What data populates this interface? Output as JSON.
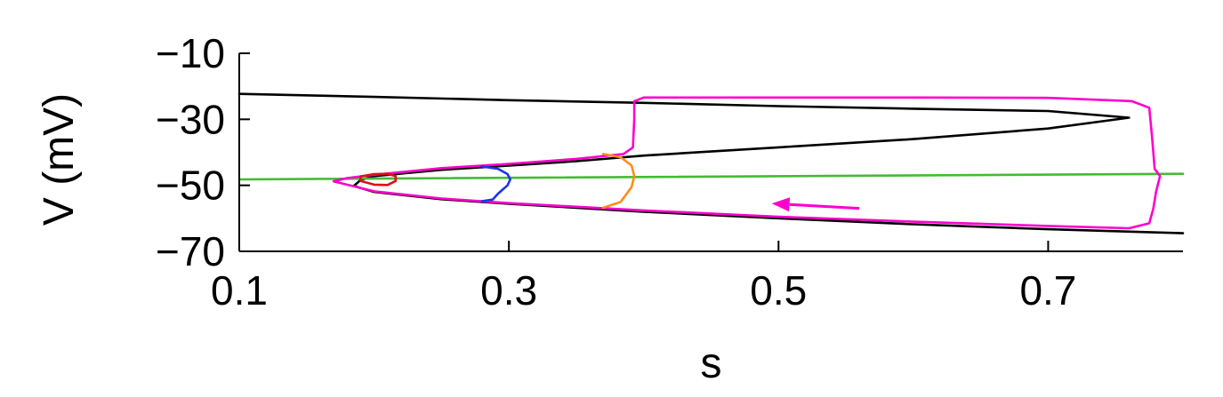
{
  "chart_data": {
    "type": "line",
    "title": "",
    "xlabel": "s",
    "ylabel": "V (mV)",
    "xlim": [
      0.1,
      0.8
    ],
    "ylim": [
      -70,
      -10
    ],
    "x_ticks": [
      0.1,
      0.3,
      0.5,
      0.7
    ],
    "x_tick_labels": [
      "0.1",
      "0.3",
      "0.5",
      "0.7"
    ],
    "y_ticks": [
      -10,
      -30,
      -50,
      -70
    ],
    "y_tick_labels": [
      "−10",
      "−30",
      "−50",
      "−70"
    ],
    "grid": false,
    "legend": "none",
    "series": [
      {
        "color": "#000000",
        "points": [
          [
            0.8,
            -64.5
          ],
          [
            0.7,
            -63.3
          ],
          [
            0.6,
            -61.8
          ],
          [
            0.5,
            -60.0
          ],
          [
            0.4,
            -58.0
          ],
          [
            0.3,
            -55.6
          ],
          [
            0.25,
            -54.2
          ],
          [
            0.2,
            -52.0
          ],
          [
            0.185,
            -50.2
          ],
          [
            0.19,
            -48.4
          ],
          [
            0.2,
            -47.2
          ],
          [
            0.25,
            -45.3
          ],
          [
            0.3,
            -44.0
          ],
          [
            0.35,
            -42.7
          ],
          [
            0.4,
            -41.0
          ],
          [
            0.5,
            -38.5
          ],
          [
            0.6,
            -36.0
          ],
          [
            0.7,
            -32.8
          ],
          [
            0.76,
            -29.5
          ],
          [
            0.7,
            -27.5
          ],
          [
            0.6,
            -26.8
          ],
          [
            0.5,
            -26.0
          ],
          [
            0.4,
            -25.0
          ],
          [
            0.3,
            -24.2
          ],
          [
            0.2,
            -23.2
          ],
          [
            0.1,
            -22.3
          ]
        ]
      },
      {
        "color": "#44bb33",
        "points": [
          [
            0.1,
            -48.2
          ],
          [
            0.8,
            -46.5
          ]
        ]
      },
      {
        "color": "#ff00cc",
        "points": [
          [
            0.393,
            -24.5
          ],
          [
            0.4,
            -23.4
          ],
          [
            0.5,
            -23.4
          ],
          [
            0.6,
            -23.4
          ],
          [
            0.7,
            -23.5
          ],
          [
            0.762,
            -24.5
          ],
          [
            0.775,
            -26.5
          ],
          [
            0.777,
            -35.0
          ],
          [
            0.779,
            -45.0
          ],
          [
            0.783,
            -47.2
          ],
          [
            0.78,
            -52.0
          ],
          [
            0.778,
            -57.0
          ],
          [
            0.775,
            -61.5
          ],
          [
            0.76,
            -63.0
          ],
          [
            0.7,
            -62.3
          ],
          [
            0.6,
            -61.0
          ],
          [
            0.5,
            -59.5
          ],
          [
            0.4,
            -57.6
          ],
          [
            0.3,
            -55.4
          ],
          [
            0.25,
            -54.0
          ],
          [
            0.2,
            -51.8
          ],
          [
            0.17,
            -48.8
          ],
          [
            0.18,
            -47.8
          ],
          [
            0.2,
            -46.8
          ],
          [
            0.25,
            -44.8
          ],
          [
            0.3,
            -43.5
          ],
          [
            0.35,
            -42.0
          ],
          [
            0.385,
            -40.5
          ],
          [
            0.392,
            -38.5
          ],
          [
            0.393,
            -30.0
          ],
          [
            0.393,
            -24.5
          ]
        ]
      },
      {
        "color": "#ff8c1a",
        "points": [
          [
            0.37,
            -40.5
          ],
          [
            0.383,
            -41.5
          ],
          [
            0.391,
            -44.0
          ],
          [
            0.393,
            -47.2
          ],
          [
            0.391,
            -50.5
          ],
          [
            0.383,
            -55.0
          ],
          [
            0.37,
            -56.8
          ]
        ]
      },
      {
        "color": "#1a33ee",
        "points": [
          [
            0.28,
            -44.3
          ],
          [
            0.292,
            -45.0
          ],
          [
            0.299,
            -46.6
          ],
          [
            0.301,
            -48.2
          ],
          [
            0.299,
            -50.0
          ],
          [
            0.292,
            -52.5
          ],
          [
            0.288,
            -54.3
          ],
          [
            0.28,
            -54.8
          ]
        ]
      },
      {
        "color": "#dd1111",
        "points": [
          [
            0.2,
            -49.8
          ],
          [
            0.21,
            -49.9
          ],
          [
            0.216,
            -48.7
          ],
          [
            0.216,
            -47.2
          ],
          [
            0.21,
            -46.5
          ],
          [
            0.2,
            -46.6
          ],
          [
            0.19,
            -47.3
          ],
          [
            0.19,
            -48.7
          ],
          [
            0.2,
            -49.8
          ]
        ]
      }
    ],
    "annotations": [
      {
        "type": "arrow",
        "color": "#ff00cc",
        "from": [
          0.56,
          -57.0
        ],
        "to": [
          0.495,
          -55.5
        ]
      }
    ]
  }
}
